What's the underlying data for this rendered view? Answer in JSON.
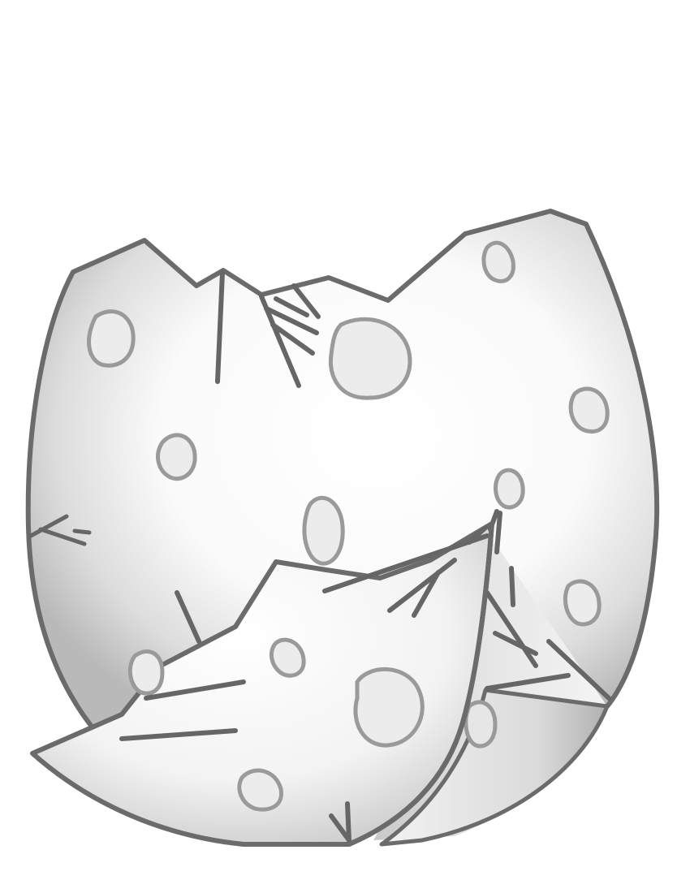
{
  "illustration": {
    "subject": "cracked-eggshell",
    "style": "grayscale-line-art"
  },
  "colors": {
    "background": "#ffffff",
    "outline": "#6b6b6b",
    "shell_light": "#ffffff",
    "shell_shade": "#cfcfcf",
    "shell_dark": "#a8a8a8",
    "spot_fill": "#e9e9e9",
    "spot_stroke": "#9a9a9a",
    "crack": "#666666"
  }
}
